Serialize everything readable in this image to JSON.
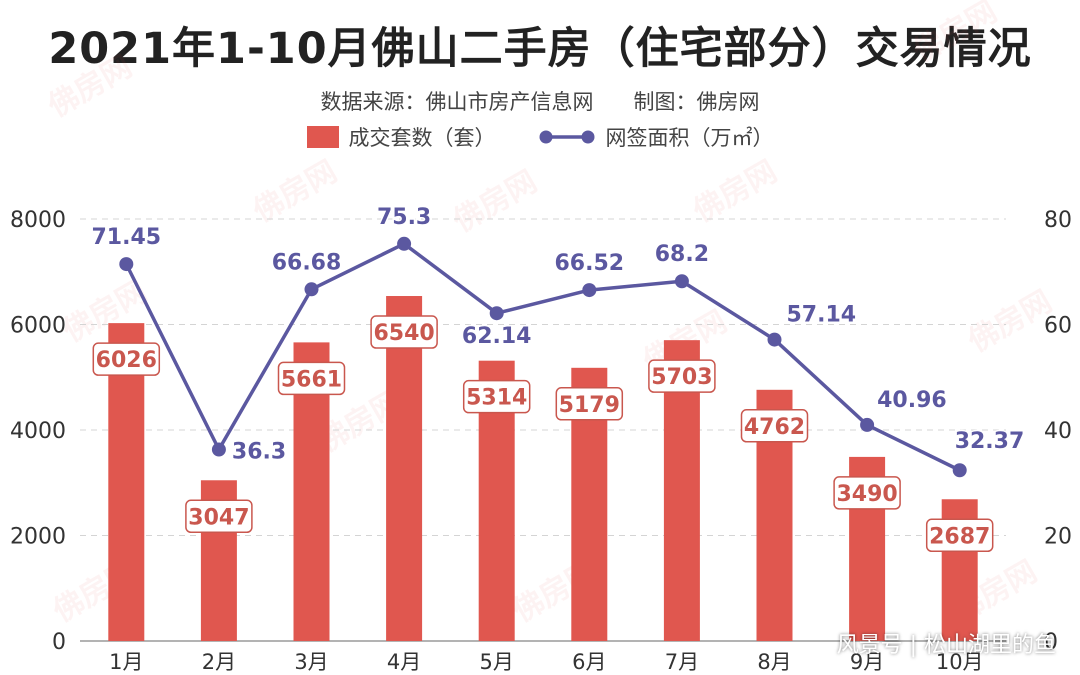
{
  "chart_data": {
    "type": "bar",
    "title": "2021年1-10月佛山二手房（住宅部分）交易情况",
    "subtitle_source": "数据来源：佛山市房产信息网",
    "subtitle_credit": "制图：佛房网",
    "categories": [
      "1月",
      "2月",
      "3月",
      "4月",
      "5月",
      "6月",
      "7月",
      "8月",
      "9月",
      "10月"
    ],
    "series": [
      {
        "name": "成交套数（套）",
        "type": "bar",
        "axis": "left",
        "color": "#e0574f",
        "values": [
          6026,
          3047,
          5661,
          6540,
          5314,
          5179,
          5703,
          4762,
          3490,
          2687
        ]
      },
      {
        "name": "网签面积（万㎡）",
        "type": "line",
        "axis": "right",
        "color": "#5b58a0",
        "values": [
          71.45,
          36.3,
          66.68,
          75.3,
          62.14,
          66.52,
          68.2,
          57.14,
          40.96,
          32.37
        ]
      }
    ],
    "y_left": {
      "min": 0,
      "max": 8000,
      "ticks": [
        0,
        2000,
        4000,
        6000,
        8000
      ]
    },
    "y_right": {
      "min": 0,
      "max": 80,
      "ticks": [
        0,
        20,
        40,
        60,
        80
      ]
    },
    "grid": true,
    "legend_position": "top-center"
  },
  "watermark_text": "风景号 | 松山湖里的鱼",
  "brand_watermark_text": "佛房网"
}
